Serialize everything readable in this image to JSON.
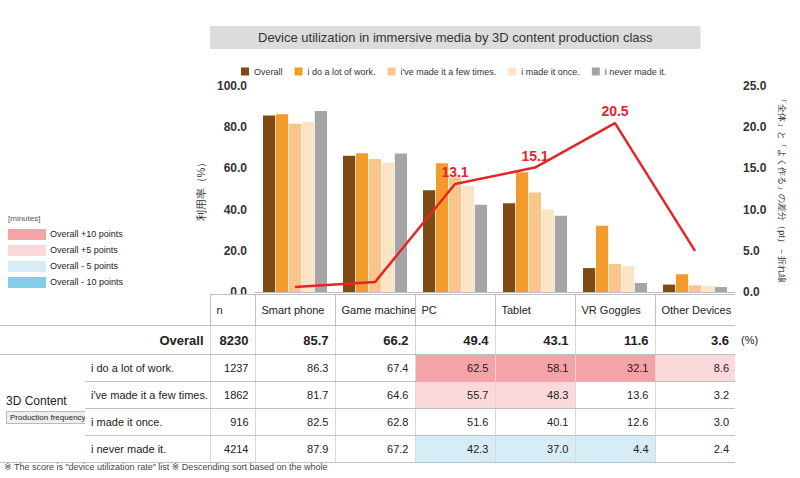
{
  "chart_data": {
    "type": "bar",
    "title": "Device utilization in immersive media by 3D content production class",
    "categories": [
      "Smart phone",
      "Game machine",
      "PC",
      "Tablet",
      "VR Goggles",
      "Other Devices"
    ],
    "series": [
      {
        "name": "Overall",
        "color": "#7f4b14",
        "values": [
          85.7,
          66.2,
          49.4,
          43.1,
          11.6,
          3.6
        ]
      },
      {
        "name": "i do a lot of work.",
        "color": "#f29b2a",
        "values": [
          86.3,
          67.4,
          62.5,
          58.1,
          32.1,
          8.6
        ]
      },
      {
        "name": "i've made it a few times.",
        "color": "#f8c68a",
        "values": [
          81.7,
          64.6,
          55.7,
          48.3,
          13.6,
          3.2
        ]
      },
      {
        "name": "i made it once.",
        "color": "#fbe3c6",
        "values": [
          82.5,
          62.8,
          51.6,
          40.1,
          12.6,
          3.0
        ],
        "value_labels": [
          "82.5",
          "62.8",
          "51.6",
          "40.1",
          "12.6",
          "3.0"
        ]
      },
      {
        "name": "i never made it.",
        "color": "#a5a5a5",
        "values": [
          87.9,
          67.2,
          42.3,
          37.0,
          4.4,
          2.4
        ],
        "value_labels": [
          "87.9",
          "67.2",
          "42.3",
          "37.0",
          "4.4",
          "2.4"
        ]
      },
      {
        "type": "line",
        "axis": "y2",
        "color": "#e3262a",
        "line_style": "solid",
        "data_labels": true,
        "values": [
          0.6,
          1.2,
          13.1,
          15.1,
          20.5,
          5.0
        ],
        "value_labels": [
          null,
          null,
          "13.1",
          "15.1",
          "20.5",
          null
        ]
      }
    ],
    "ylabel": "利用率（%）",
    "y2label": "「全体」と「よく作る」の差分（pt）－折れ線",
    "ylim": [
      0,
      100
    ],
    "yticks": [
      {
        "value": 0,
        "label": "0.0"
      },
      {
        "value": 20,
        "label": "20.0"
      },
      {
        "value": 40,
        "label": "40.0"
      },
      {
        "value": 60,
        "label": "60.0"
      },
      {
        "value": 80,
        "label": "80.0"
      },
      {
        "value": 100,
        "label": "100.0"
      }
    ],
    "y2lim": [
      0,
      25
    ],
    "y2ticks": [
      {
        "value": 0,
        "label": "0.0"
      },
      {
        "value": 5,
        "label": "5.0"
      },
      {
        "value": 10,
        "label": "10.0"
      },
      {
        "value": 15,
        "label": "15.0"
      },
      {
        "value": 20,
        "label": "20.0"
      },
      {
        "value": 25,
        "label": "25.0"
      }
    ],
    "grid": false,
    "legend": "top"
  },
  "table": {
    "n_header": "n",
    "n": [
      8230,
      1237,
      1862,
      916,
      4214
    ],
    "unit": "(%)",
    "group_label": "3D Content",
    "group_sublabel": "Production frequency"
  },
  "key": {
    "title": "[minutes]",
    "items": [
      {
        "label": "Overall +10 points",
        "color": "#f4a3a6",
        "points": 10
      },
      {
        "label": "Overall +5 points",
        "color": "#fbd8d9",
        "points": 5
      },
      {
        "label": "Overall - 5 points",
        "color": "#d6edf7",
        "points": -5
      },
      {
        "label": "Overall - 10 points",
        "color": "#86cde6",
        "points": -10
      }
    ]
  },
  "notes": "※ The score is \"device utilization rate\" list ※ Descending sort based on the whole"
}
